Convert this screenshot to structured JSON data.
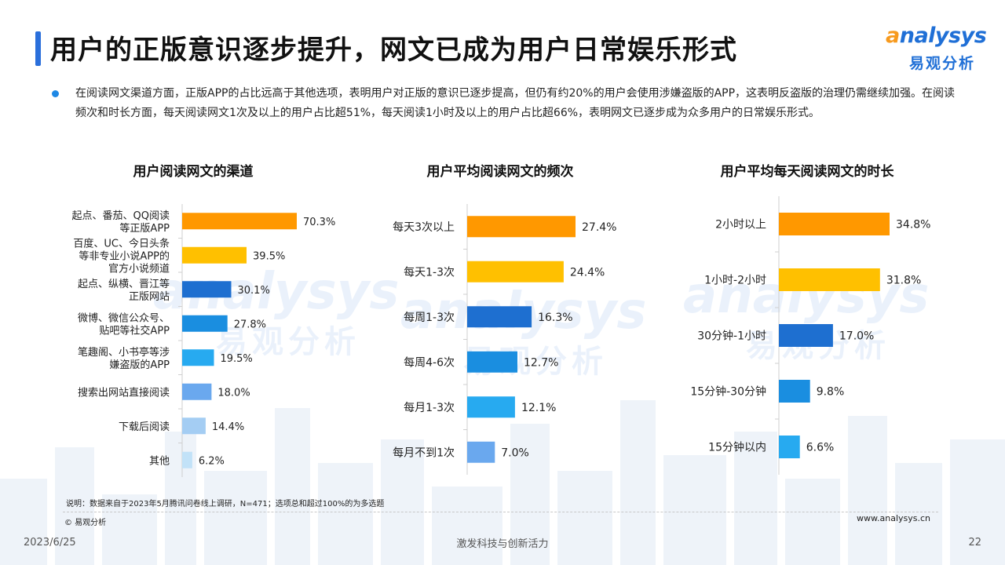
{
  "header": {
    "title": "用户的正版意识逐步提升，网文已成为用户日常娱乐形式",
    "logo_word_o": "a",
    "logo_word_rest": "nalysys",
    "logo_cn": "易观分析"
  },
  "summary": "在阅读网文渠道方面，正版APP的占比远高于其他选项，表明用户对正版的意识已逐步提高，但仍有约20%的用户会使用涉嫌盗版的APP，这表明反盗版的治理仍需继续加强。在阅读频次和时长方面，每天阅读网文1次及以上的用户占比超51%，每天阅读1小时及以上的用户占比超66%，表明网文已逐步成为众多用户的日常娱乐形式。",
  "colors": {
    "accent": "#2a6fdb",
    "bar_orange": "#ff9800",
    "bar_yellow": "#ffc000",
    "bar_blue_dark": "#1e6fd0",
    "bar_blue": "#1a8ee0",
    "bar_sky": "#27aaf0",
    "bar_light": "#6aa8ee",
    "bar_pale": "#a4cdf3",
    "bar_palest": "#c2e2f8"
  },
  "chart_data": [
    {
      "type": "bar",
      "orientation": "horizontal",
      "title": "用户阅读网文的渠道",
      "categories": [
        [
          "起点、番茄、QQ阅读",
          "等正版APP"
        ],
        [
          "百度、UC、今日头条",
          "等非专业小说APP的",
          "官方小说频道"
        ],
        [
          "起点、纵横、晋江等",
          "正版网站"
        ],
        [
          "微博、微信公众号、",
          "贴吧等社交APP"
        ],
        [
          "笔趣阁、小书亭等涉",
          "嫌盗版的APP"
        ],
        [
          "搜索出网站直接阅读"
        ],
        [
          "下载后阅读"
        ],
        [
          "其他"
        ]
      ],
      "values": [
        70.3,
        39.5,
        30.1,
        27.8,
        19.5,
        18.0,
        14.4,
        6.2
      ],
      "labels": [
        "70.3%",
        "39.5%",
        "30.1%",
        "27.8%",
        "19.5%",
        "18.0%",
        "14.4%",
        "6.2%"
      ],
      "unit": "%",
      "xlim": [
        0,
        100
      ],
      "bar_colors": [
        "#ff9800",
        "#ffc000",
        "#1e6fd0",
        "#1a8ee0",
        "#27aaf0",
        "#6aa8ee",
        "#a4cdf3",
        "#c2e2f8"
      ]
    },
    {
      "type": "bar",
      "orientation": "horizontal",
      "title": "用户平均阅读网文的频次",
      "categories": [
        [
          "每天3次以上"
        ],
        [
          "每天1-3次"
        ],
        [
          "每周1-3次"
        ],
        [
          "每周4-6次"
        ],
        [
          "每月1-3次"
        ],
        [
          "每月不到1次"
        ]
      ],
      "values": [
        27.4,
        24.4,
        16.3,
        12.7,
        12.1,
        7.0
      ],
      "labels": [
        "27.4%",
        "24.4%",
        "16.3%",
        "12.7%",
        "12.1%",
        "7.0%"
      ],
      "unit": "%",
      "xlim": [
        0,
        40
      ],
      "bar_colors": [
        "#ff9800",
        "#ffc000",
        "#1e6fd0",
        "#1a8ee0",
        "#27aaf0",
        "#6aa8ee"
      ]
    },
    {
      "type": "bar",
      "orientation": "horizontal",
      "title": "用户平均每天阅读网文的时长",
      "categories": [
        [
          "2小时以上"
        ],
        [
          "1小时-2小时"
        ],
        [
          "30分钟-1小时"
        ],
        [
          "15分钟-30分钟"
        ],
        [
          "15分钟以内"
        ]
      ],
      "values": [
        34.8,
        31.8,
        17.0,
        9.8,
        6.6
      ],
      "labels": [
        "34.8%",
        "31.8%",
        "17.0%",
        "9.8%",
        "6.6%"
      ],
      "unit": "%",
      "xlim": [
        0,
        50
      ],
      "bar_colors": [
        "#ff9800",
        "#ffc000",
        "#1e6fd0",
        "#1a8ee0",
        "#27aaf0"
      ]
    }
  ],
  "footer": {
    "note": "说明：数据来自于2023年5月腾讯问卷线上调研，N=471；选项总和超过100%的为多选题",
    "copyright": "© 易观分析",
    "website": "www.analysys.cn",
    "date": "2023/6/25",
    "slogan": "激发科技与创新活力",
    "page": "22"
  }
}
